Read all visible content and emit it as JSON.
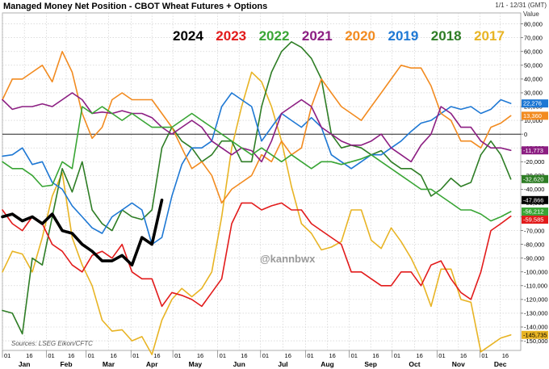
{
  "chart_data": {
    "type": "line",
    "title": "Managed Money Net Position - CBOT Wheat Futures + Options",
    "date_range": "1/1 - 12/31 (GMT)",
    "ylabel": "Value",
    "ylim": [
      -160000,
      90000
    ],
    "y_ticks": [
      80000,
      70000,
      60000,
      50000,
      40000,
      30000,
      20000,
      10000,
      0,
      -10000,
      -20000,
      -30000,
      -40000,
      -50000,
      -60000,
      -70000,
      -80000,
      -90000,
      -100000,
      -110000,
      -120000,
      -130000,
      -140000,
      -150000
    ],
    "y_tick_labels": [
      "80,000",
      "70,000",
      "60,000",
      "50,000",
      "40,000",
      "30,000",
      "20,000",
      "10,000",
      "0",
      "-10,000",
      "-20,000",
      "-30,000",
      "-40,000",
      "-50,000",
      "-60,000",
      "-70,000",
      "-80,000",
      "-90,000",
      "-100,000",
      "-110,000",
      "-120,000",
      "-130,000",
      "-140,000",
      "-150,000"
    ],
    "x_unit": "week of year",
    "xlim": [
      1,
      53
    ],
    "months": [
      {
        "name": "Jan",
        "start": 1
      },
      {
        "name": "Feb",
        "start": 5.4
      },
      {
        "name": "Mar",
        "start": 9.4
      },
      {
        "name": "Apr",
        "start": 13.9
      },
      {
        "name": "May",
        "start": 18.1
      },
      {
        "name": "Jun",
        "start": 22.6
      },
      {
        "name": "Jul",
        "start": 26.9
      },
      {
        "name": "Aug",
        "start": 31.4
      },
      {
        "name": "Sep",
        "start": 35.8
      },
      {
        "name": "Oct",
        "start": 40.1
      },
      {
        "name": "Nov",
        "start": 44.6
      },
      {
        "name": "Dec",
        "start": 48.9
      }
    ],
    "day_labels": [
      "01",
      "16"
    ],
    "zero_line": true,
    "grid": true,
    "legend_position": "top",
    "series": [
      {
        "name": "2017",
        "color": "#e8b424",
        "width": 1.6,
        "last_label": "-145,735",
        "x": [
          1,
          2,
          3,
          4,
          5,
          6,
          7,
          8,
          9,
          10,
          11,
          12,
          13,
          14,
          15,
          16,
          17,
          18,
          19,
          20,
          21,
          22,
          23,
          24,
          25,
          26,
          27,
          28,
          29,
          30,
          31,
          32,
          33,
          34,
          35,
          36,
          37,
          38,
          39,
          40,
          41,
          42,
          43,
          44,
          45,
          46,
          47,
          48,
          49,
          50,
          51,
          52
        ],
        "values": [
          -100000,
          -85000,
          -87000,
          -100000,
          -75000,
          -45000,
          -28000,
          -75000,
          -95000,
          -110000,
          -135000,
          -143000,
          -142000,
          -150000,
          -147000,
          -160000,
          -135000,
          -120000,
          -112000,
          -118000,
          -112000,
          -100000,
          -60000,
          -10000,
          20000,
          45000,
          38000,
          20000,
          -5000,
          -38000,
          -65000,
          -72000,
          -84000,
          -82000,
          -78000,
          -55000,
          -55000,
          -77000,
          -83000,
          -68000,
          -78000,
          -90000,
          -105000,
          -125000,
          -98000,
          -98000,
          -120000,
          -122000,
          -158000,
          -153000,
          -148000,
          -145735
        ]
      },
      {
        "name": "2018",
        "color": "#2e7d25",
        "width": 1.6,
        "last_label": "-32,620",
        "x": [
          1,
          2,
          3,
          4,
          5,
          6,
          7,
          8,
          9,
          10,
          11,
          12,
          13,
          14,
          15,
          16,
          17,
          18,
          19,
          20,
          21,
          22,
          23,
          24,
          25,
          26,
          27,
          28,
          29,
          30,
          31,
          32,
          33,
          34,
          35,
          36,
          37,
          38,
          39,
          40,
          41,
          42,
          43,
          44,
          45,
          46,
          47,
          48,
          49,
          50,
          51,
          52
        ],
        "values": [
          -128000,
          -130000,
          -145000,
          -90000,
          -95000,
          -60000,
          -25000,
          -42000,
          -20000,
          -55000,
          -65000,
          -70000,
          -55000,
          -60000,
          -62000,
          -55000,
          -10000,
          5000,
          -5000,
          -10000,
          -20000,
          -15000,
          -5000,
          -5000,
          -20000,
          -20000,
          20000,
          45000,
          60000,
          67000,
          63000,
          55000,
          40000,
          0,
          -10000,
          -8000,
          -10000,
          -15000,
          -12000,
          -20000,
          -25000,
          -25000,
          -30000,
          -45000,
          -40000,
          -32000,
          -38000,
          -35000,
          -15000,
          -5000,
          -15000,
          -32620
        ]
      },
      {
        "name": "2019",
        "color": "#1e78d4",
        "width": 1.6,
        "last_label": "22,276",
        "x": [
          1,
          2,
          3,
          4,
          5,
          6,
          7,
          8,
          9,
          10,
          11,
          12,
          13,
          14,
          15,
          16,
          17,
          18,
          19,
          20,
          21,
          22,
          23,
          24,
          25,
          26,
          27,
          28,
          29,
          30,
          31,
          32,
          33,
          34,
          35,
          36,
          37,
          38,
          39,
          40,
          41,
          42,
          43,
          44,
          45,
          46,
          47,
          48,
          49,
          50,
          51,
          52
        ],
        "values": [
          -16000,
          -15000,
          -10000,
          -22000,
          -20000,
          -35000,
          -40000,
          -52000,
          -60000,
          -68000,
          -72000,
          -60000,
          -55000,
          -50000,
          -55000,
          -80000,
          -75000,
          -45000,
          -22000,
          -10000,
          -10000,
          -5000,
          20000,
          30000,
          25000,
          20000,
          -5000,
          5000,
          15000,
          10000,
          5000,
          12000,
          5000,
          -15000,
          -20000,
          -25000,
          -20000,
          -15000,
          -15000,
          -10000,
          -5000,
          2000,
          8000,
          10000,
          15000,
          20000,
          18000,
          20000,
          15000,
          18000,
          25000,
          22276
        ]
      },
      {
        "name": "2020",
        "color": "#f28b20",
        "width": 1.6,
        "last_label": "13,360",
        "x": [
          1,
          2,
          3,
          4,
          5,
          6,
          7,
          8,
          9,
          10,
          11,
          12,
          13,
          14,
          15,
          16,
          17,
          18,
          19,
          20,
          21,
          22,
          23,
          24,
          25,
          26,
          27,
          28,
          29,
          30,
          31,
          32,
          33,
          34,
          35,
          36,
          37,
          38,
          39,
          40,
          41,
          42,
          43,
          44,
          45,
          46,
          47,
          48,
          49,
          50,
          51,
          52
        ],
        "values": [
          25000,
          40000,
          40000,
          45000,
          50000,
          38000,
          60000,
          45000,
          15000,
          -3000,
          5000,
          25000,
          30000,
          25000,
          25000,
          25000,
          15000,
          5000,
          -10000,
          -25000,
          -20000,
          -30000,
          -50000,
          -40000,
          -35000,
          -30000,
          -15000,
          -20000,
          -5000,
          -15000,
          -10000,
          20000,
          40000,
          30000,
          20000,
          15000,
          10000,
          20000,
          30000,
          40000,
          50000,
          48000,
          48000,
          35000,
          15000,
          10000,
          -5000,
          -5000,
          -10000,
          5000,
          8000,
          13360
        ]
      },
      {
        "name": "2021",
        "color": "#8c1e82",
        "width": 1.6,
        "last_label": "-11,773",
        "x": [
          1,
          2,
          3,
          4,
          5,
          6,
          7,
          8,
          9,
          10,
          11,
          12,
          13,
          14,
          15,
          16,
          17,
          18,
          19,
          20,
          21,
          22,
          23,
          24,
          25,
          26,
          27,
          28,
          29,
          30,
          31,
          32,
          33,
          34,
          35,
          36,
          37,
          38,
          39,
          40,
          41,
          42,
          43,
          44,
          45,
          46,
          47,
          48,
          49,
          50,
          51,
          52
        ],
        "values": [
          25000,
          18000,
          20000,
          20000,
          22000,
          20000,
          25000,
          30000,
          25000,
          15000,
          16000,
          15000,
          17000,
          15000,
          15000,
          12000,
          5000,
          0,
          5000,
          10000,
          5000,
          -5000,
          -10000,
          -15000,
          -10000,
          -12000,
          -20000,
          -5000,
          15000,
          20000,
          25000,
          20000,
          5000,
          0,
          -5000,
          -8000,
          -8000,
          -5000,
          0,
          -10000,
          -15000,
          -20000,
          -8000,
          0,
          20000,
          15000,
          5000,
          5000,
          -5000,
          -10000,
          -10000,
          -11773
        ]
      },
      {
        "name": "2022",
        "color": "#39a535",
        "width": 1.6,
        "last_label": "-56,212",
        "x": [
          1,
          2,
          3,
          4,
          5,
          6,
          7,
          8,
          9,
          10,
          11,
          12,
          13,
          14,
          15,
          16,
          17,
          18,
          19,
          20,
          21,
          22,
          23,
          24,
          25,
          26,
          27,
          28,
          29,
          30,
          31,
          32,
          33,
          34,
          35,
          36,
          37,
          38,
          39,
          40,
          41,
          42,
          43,
          44,
          45,
          46,
          47,
          48,
          49,
          50,
          51,
          52
        ],
        "values": [
          -20000,
          -25000,
          -25000,
          -30000,
          -38000,
          -37000,
          -20000,
          -25000,
          20000,
          15000,
          20000,
          15000,
          10000,
          15000,
          10000,
          5000,
          5000,
          5000,
          10000,
          15000,
          10000,
          5000,
          0,
          -5000,
          -10000,
          -15000,
          -10000,
          -15000,
          -20000,
          -15000,
          -20000,
          -25000,
          -20000,
          -20000,
          -22000,
          -20000,
          -18000,
          -15000,
          -20000,
          -25000,
          -30000,
          -35000,
          -40000,
          -40000,
          -45000,
          -50000,
          -55000,
          -55000,
          -58000,
          -63000,
          -60000,
          -56212
        ]
      },
      {
        "name": "2023",
        "color": "#e21b1b",
        "width": 1.6,
        "last_label": "-59,585",
        "x": [
          1,
          2,
          3,
          4,
          5,
          6,
          7,
          8,
          9,
          10,
          11,
          12,
          13,
          14,
          15,
          16,
          17,
          18,
          19,
          20,
          21,
          22,
          23,
          24,
          25,
          26,
          27,
          28,
          29,
          30,
          31,
          32,
          33,
          34,
          35,
          36,
          37,
          38,
          39,
          40,
          41,
          42,
          43,
          44,
          45,
          46,
          47,
          48,
          49,
          50,
          51,
          52
        ],
        "values": [
          -55000,
          -65000,
          -70000,
          -60000,
          -65000,
          -80000,
          -85000,
          -95000,
          -100000,
          -88000,
          -85000,
          -90000,
          -80000,
          -100000,
          -105000,
          -105000,
          -125000,
          -115000,
          -117000,
          -120000,
          -125000,
          -115000,
          -105000,
          -65000,
          -50000,
          -50000,
          -55000,
          -52000,
          -50000,
          -55000,
          -55000,
          -65000,
          -70000,
          -75000,
          -80000,
          -100000,
          -100000,
          -105000,
          -110000,
          -110000,
          -100000,
          -100000,
          -110000,
          -95000,
          -92000,
          -105000,
          -115000,
          -120000,
          -100000,
          -70000,
          -65000,
          -59585
        ]
      },
      {
        "name": "2024",
        "color": "#000000",
        "width": 3.6,
        "last_label": "-47,866",
        "x": [
          1,
          2,
          3,
          4,
          5,
          6,
          7,
          8,
          9,
          10,
          11,
          12,
          13,
          14,
          15,
          16,
          17
        ],
        "values": [
          -60000,
          -58000,
          -63000,
          -60000,
          -65000,
          -58000,
          -70000,
          -72000,
          -80000,
          -85000,
          -92000,
          -92000,
          -88000,
          -95000,
          -75000,
          -80000,
          -47866
        ]
      }
    ],
    "legend_order": [
      "2024",
      "2023",
      "2022",
      "2021",
      "2020",
      "2019",
      "2018",
      "2017"
    ],
    "last_label_order": [
      "2019",
      "2020",
      "2021",
      "2018",
      "2024",
      "2022",
      "2023",
      "2017"
    ],
    "watermark": "@kannbwx",
    "source": "Sources: LSEG Eikon/CFTC"
  }
}
